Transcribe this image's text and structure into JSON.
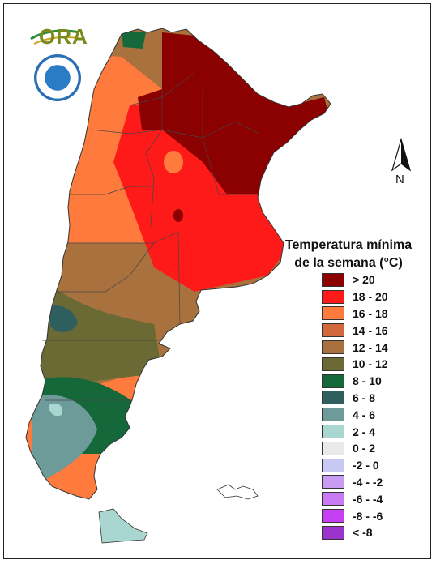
{
  "legend": {
    "title_line1": "Temperatura mínima",
    "title_line2": "de la semana (°C)",
    "items": [
      {
        "label": "> 20",
        "color": "#8b0000"
      },
      {
        "label": "18 - 20",
        "color": "#ff1a1a"
      },
      {
        "label": "16 - 18",
        "color": "#ff7a3d"
      },
      {
        "label": "14 - 16",
        "color": "#d2693c"
      },
      {
        "label": "12 - 14",
        "color": "#a9713d"
      },
      {
        "label": "10 - 12",
        "color": "#6b6a35"
      },
      {
        "label": "8 - 10",
        "color": "#14683a"
      },
      {
        "label": "6 - 8",
        "color": "#2f5e5e"
      },
      {
        "label": "4 - 6",
        "color": "#6d9b99"
      },
      {
        "label": "2 - 4",
        "color": "#a9d6d0"
      },
      {
        "label": "0 - 2",
        "color": "#e9e9e9"
      },
      {
        "label": "-2 - 0",
        "color": "#c7c9f2"
      },
      {
        "label": "-4 - -2",
        "color": "#c79cf2"
      },
      {
        "label": "-6 - -4",
        "color": "#c77af2"
      },
      {
        "label": "-8 - -6",
        "color": "#c43ef2"
      },
      {
        "label": "< -8",
        "color": "#9b33cc"
      }
    ]
  },
  "logo": {
    "text": "ORA"
  },
  "north_arrow": {
    "label": "N"
  }
}
